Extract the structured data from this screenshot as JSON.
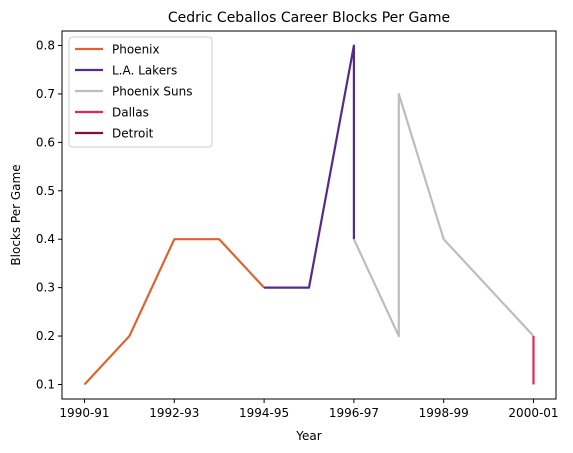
{
  "chart_data": {
    "type": "line",
    "title": "Cedric Ceballos Career Blocks Per Game",
    "xlabel": "Year",
    "ylabel": "Blocks Per Game",
    "ylim": [
      0.07,
      0.83
    ],
    "yticks": [
      0.1,
      0.2,
      0.3,
      0.4,
      0.5,
      0.6,
      0.7,
      0.8
    ],
    "xticks": [
      "1990-91",
      "1992-93",
      "1994-95",
      "1996-97",
      "1998-99",
      "2000-01"
    ],
    "grid": false,
    "legend_position": "top-left",
    "series": [
      {
        "name": "Phoenix",
        "color": "#e1622e",
        "points": [
          {
            "x": "1990-91",
            "y": 0.1
          },
          {
            "x": "1991-92",
            "y": 0.2
          },
          {
            "x": "1992-93",
            "y": 0.4
          },
          {
            "x": "1993-94",
            "y": 0.4
          },
          {
            "x": "1994-95",
            "y": 0.3
          }
        ]
      },
      {
        "name": "L.A. Lakers",
        "color": "#57298a",
        "points": [
          {
            "x": "1994-95",
            "y": 0.3
          },
          {
            "x": "1995-96",
            "y": 0.3
          },
          {
            "x": "1996-97",
            "y": 0.8
          },
          {
            "x": "1996-97",
            "y": 0.4
          }
        ]
      },
      {
        "name": "Phoenix Suns",
        "color": "#bdbdbd",
        "points": [
          {
            "x": "1996-97",
            "y": 0.4
          },
          {
            "x": "1997-98",
            "y": 0.2
          },
          {
            "x": "1997-98",
            "y": 0.7
          },
          {
            "x": "1998-99",
            "y": 0.4
          },
          {
            "x": "2000-01",
            "y": 0.2
          }
        ]
      },
      {
        "name": "Dallas",
        "color": "#dc2a56",
        "points": [
          {
            "x": "2000-01",
            "y": 0.2
          },
          {
            "x": "2000-01",
            "y": 0.1
          }
        ]
      },
      {
        "name": "Detroit",
        "color": "#8b0a3c",
        "points": []
      }
    ]
  }
}
